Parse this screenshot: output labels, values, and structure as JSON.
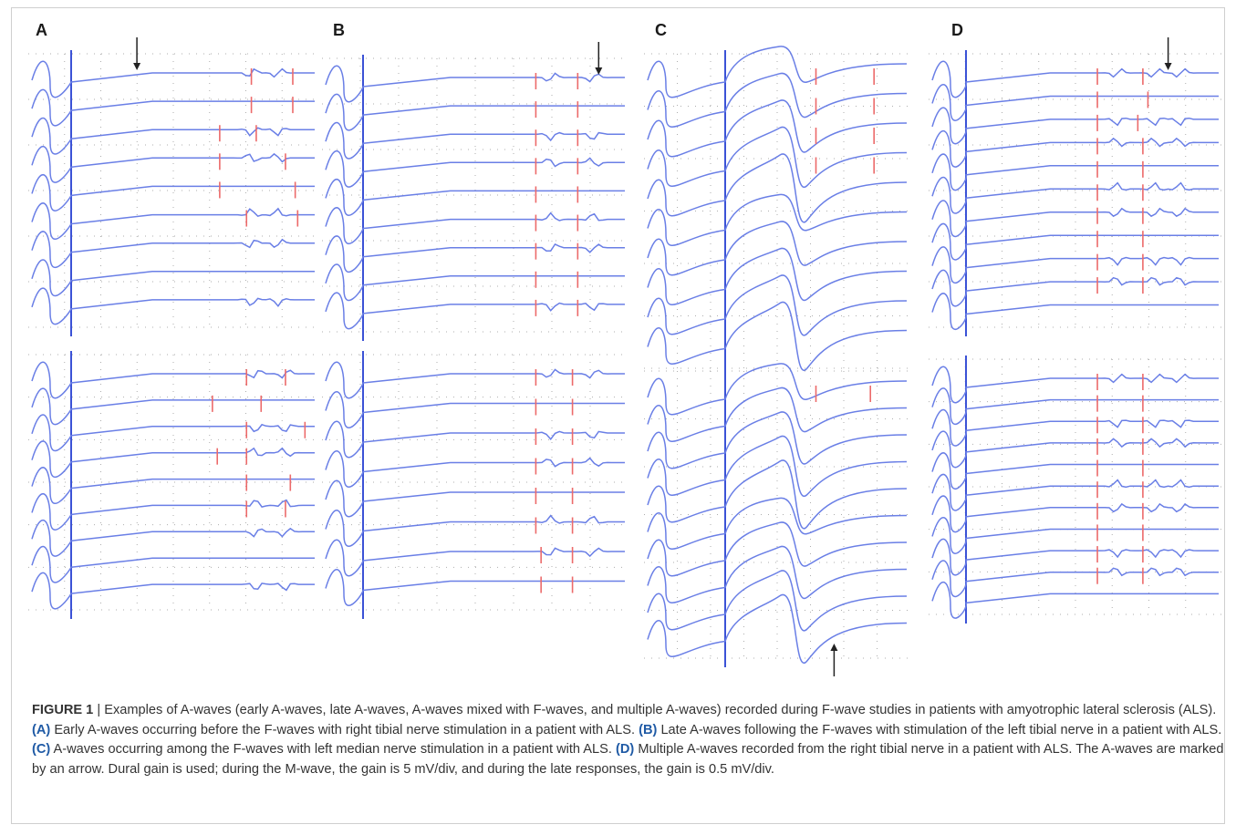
{
  "figure": {
    "panels": [
      {
        "id": "A",
        "label": "A",
        "blocks": [
          {
            "n": 9,
            "markers": [
              [
                0.74,
                0.91
              ],
              [
                0.74,
                0.91
              ],
              [
                0.61,
                0.76
              ],
              [
                0.61,
                0.88
              ],
              [
                0.61,
                0.92
              ],
              [
                0.72,
                0.93
              ]
            ],
            "bumps": [
              0.74,
              0.85
            ],
            "arrow": {
              "at": 0.27,
              "dir": "down"
            }
          },
          {
            "n": 9,
            "markers": [
              [
                0.72,
                0.88
              ],
              [
                0.58,
                0.78
              ],
              [
                0.72,
                0.96
              ],
              [
                0.6,
                0.72
              ],
              [
                0.72,
                0.9
              ],
              [
                0.72,
                0.88
              ]
            ],
            "bumps": [
              0.76,
              0.88
            ]
          }
        ]
      },
      {
        "id": "B",
        "label": "B",
        "blocks": [
          {
            "n": 9,
            "markers": [
              [
                0.66,
                0.82
              ],
              [
                0.66,
                0.82
              ],
              [
                0.66,
                0.82
              ],
              [
                0.66,
                0.82
              ],
              [
                0.66,
                0.82
              ],
              [
                0.66,
                0.82
              ],
              [
                0.66,
                0.82
              ],
              [
                0.66,
                0.82
              ],
              [
                0.66,
                0.82
              ]
            ],
            "bumps": [
              0.72,
              0.88
            ],
            "arrow": {
              "at": 0.9,
              "dir": "down"
            }
          },
          {
            "n": 8,
            "markers": [
              [
                0.66,
                0.8
              ],
              [
                0.66,
                0.8
              ],
              [
                0.66,
                0.8
              ],
              [
                0.66,
                0.8
              ],
              [
                0.66,
                0.8
              ],
              [
                0.66,
                0.8
              ],
              [
                0.68,
                0.8
              ],
              [
                0.68,
                0.8
              ]
            ],
            "bumps": [
              0.72,
              0.88
            ]
          }
        ]
      },
      {
        "id": "C",
        "label": "C",
        "blocks": [
          {
            "n": 10,
            "markers": [
              [
                0.5,
                0.82
              ],
              [
                0.5,
                0.82
              ],
              [
                0.5,
                0.82
              ],
              [
                0.5,
                0.82
              ]
            ],
            "bumps": [
              0.6
            ],
            "big": true
          },
          {
            "n": 10,
            "markers": [
              [
                0.5,
                0.8
              ]
            ],
            "bumps": [
              0.58
            ],
            "big": true,
            "arrow": {
              "at": 0.6,
              "dir": "up"
            }
          }
        ]
      },
      {
        "id": "D",
        "label": "D",
        "blocks": [
          {
            "n": 11,
            "markers": [
              [
                0.52,
                0.7
              ],
              [
                0.52,
                0.72
              ],
              [
                0.52,
                0.68
              ],
              [
                0.52,
                0.7
              ],
              [
                0.52,
                0.7
              ],
              [
                0.52,
                0.7
              ],
              [
                0.52,
                0.7
              ],
              [
                0.52,
                0.7
              ],
              [
                0.52,
                0.7
              ],
              [
                0.52,
                0.7
              ]
            ],
            "bumps": [
              0.6,
              0.75,
              0.85
            ],
            "arrow": {
              "at": 0.8,
              "dir": "down"
            }
          },
          {
            "n": 11,
            "markers": [
              [
                0.52,
                0.7
              ],
              [
                0.52,
                0.7
              ],
              [
                0.52,
                0.7
              ],
              [
                0.52,
                0.7
              ],
              [
                0.52,
                0.7
              ],
              [
                0.52,
                0.7
              ],
              [
                0.52,
                0.7
              ],
              [
                0.52,
                0.7
              ],
              [
                0.52,
                0.7
              ],
              [
                0.52,
                0.7
              ]
            ],
            "bumps": [
              0.6,
              0.75,
              0.85
            ]
          }
        ]
      }
    ]
  },
  "caption": {
    "figure_label": "FIGURE 1",
    "intro": " | Examples of A-waves (early A-waves, late A-waves, A-waves mixed with F-waves, and multiple A-waves) recorded during F-wave studies in patients with amyotrophic lateral sclerosis (ALS). ",
    "a_label": "(A)",
    "a_text": " Early A-waves occurring before the F-waves with right tibial nerve stimulation in a patient with ALS. ",
    "b_label": "(B)",
    "b_text": " Late A-waves following the F-waves with stimulation of the left tibial nerve in a patient with ALS. ",
    "c_label": "(C)",
    "c_text": " A-waves occurring among the F-waves with left median nerve stimulation in a patient with ALS. ",
    "d_label": "(D)",
    "d_text": " Multiple A-waves recorded from the right tibial nerve in a patient with ALS. The A-waves are marked by an arrow. Dural gain is used; during the M-wave, the gain is 5 mV/div, and during the late responses, the gain is 0.5 mV/div."
  },
  "colors": {
    "trace": "#6a7fe6",
    "stim_line": "#3b52d6",
    "marker": "#ec6a6a",
    "grid": "#9a9a9a",
    "arrow": "#222222",
    "caption_label": "#1f5aa5"
  }
}
